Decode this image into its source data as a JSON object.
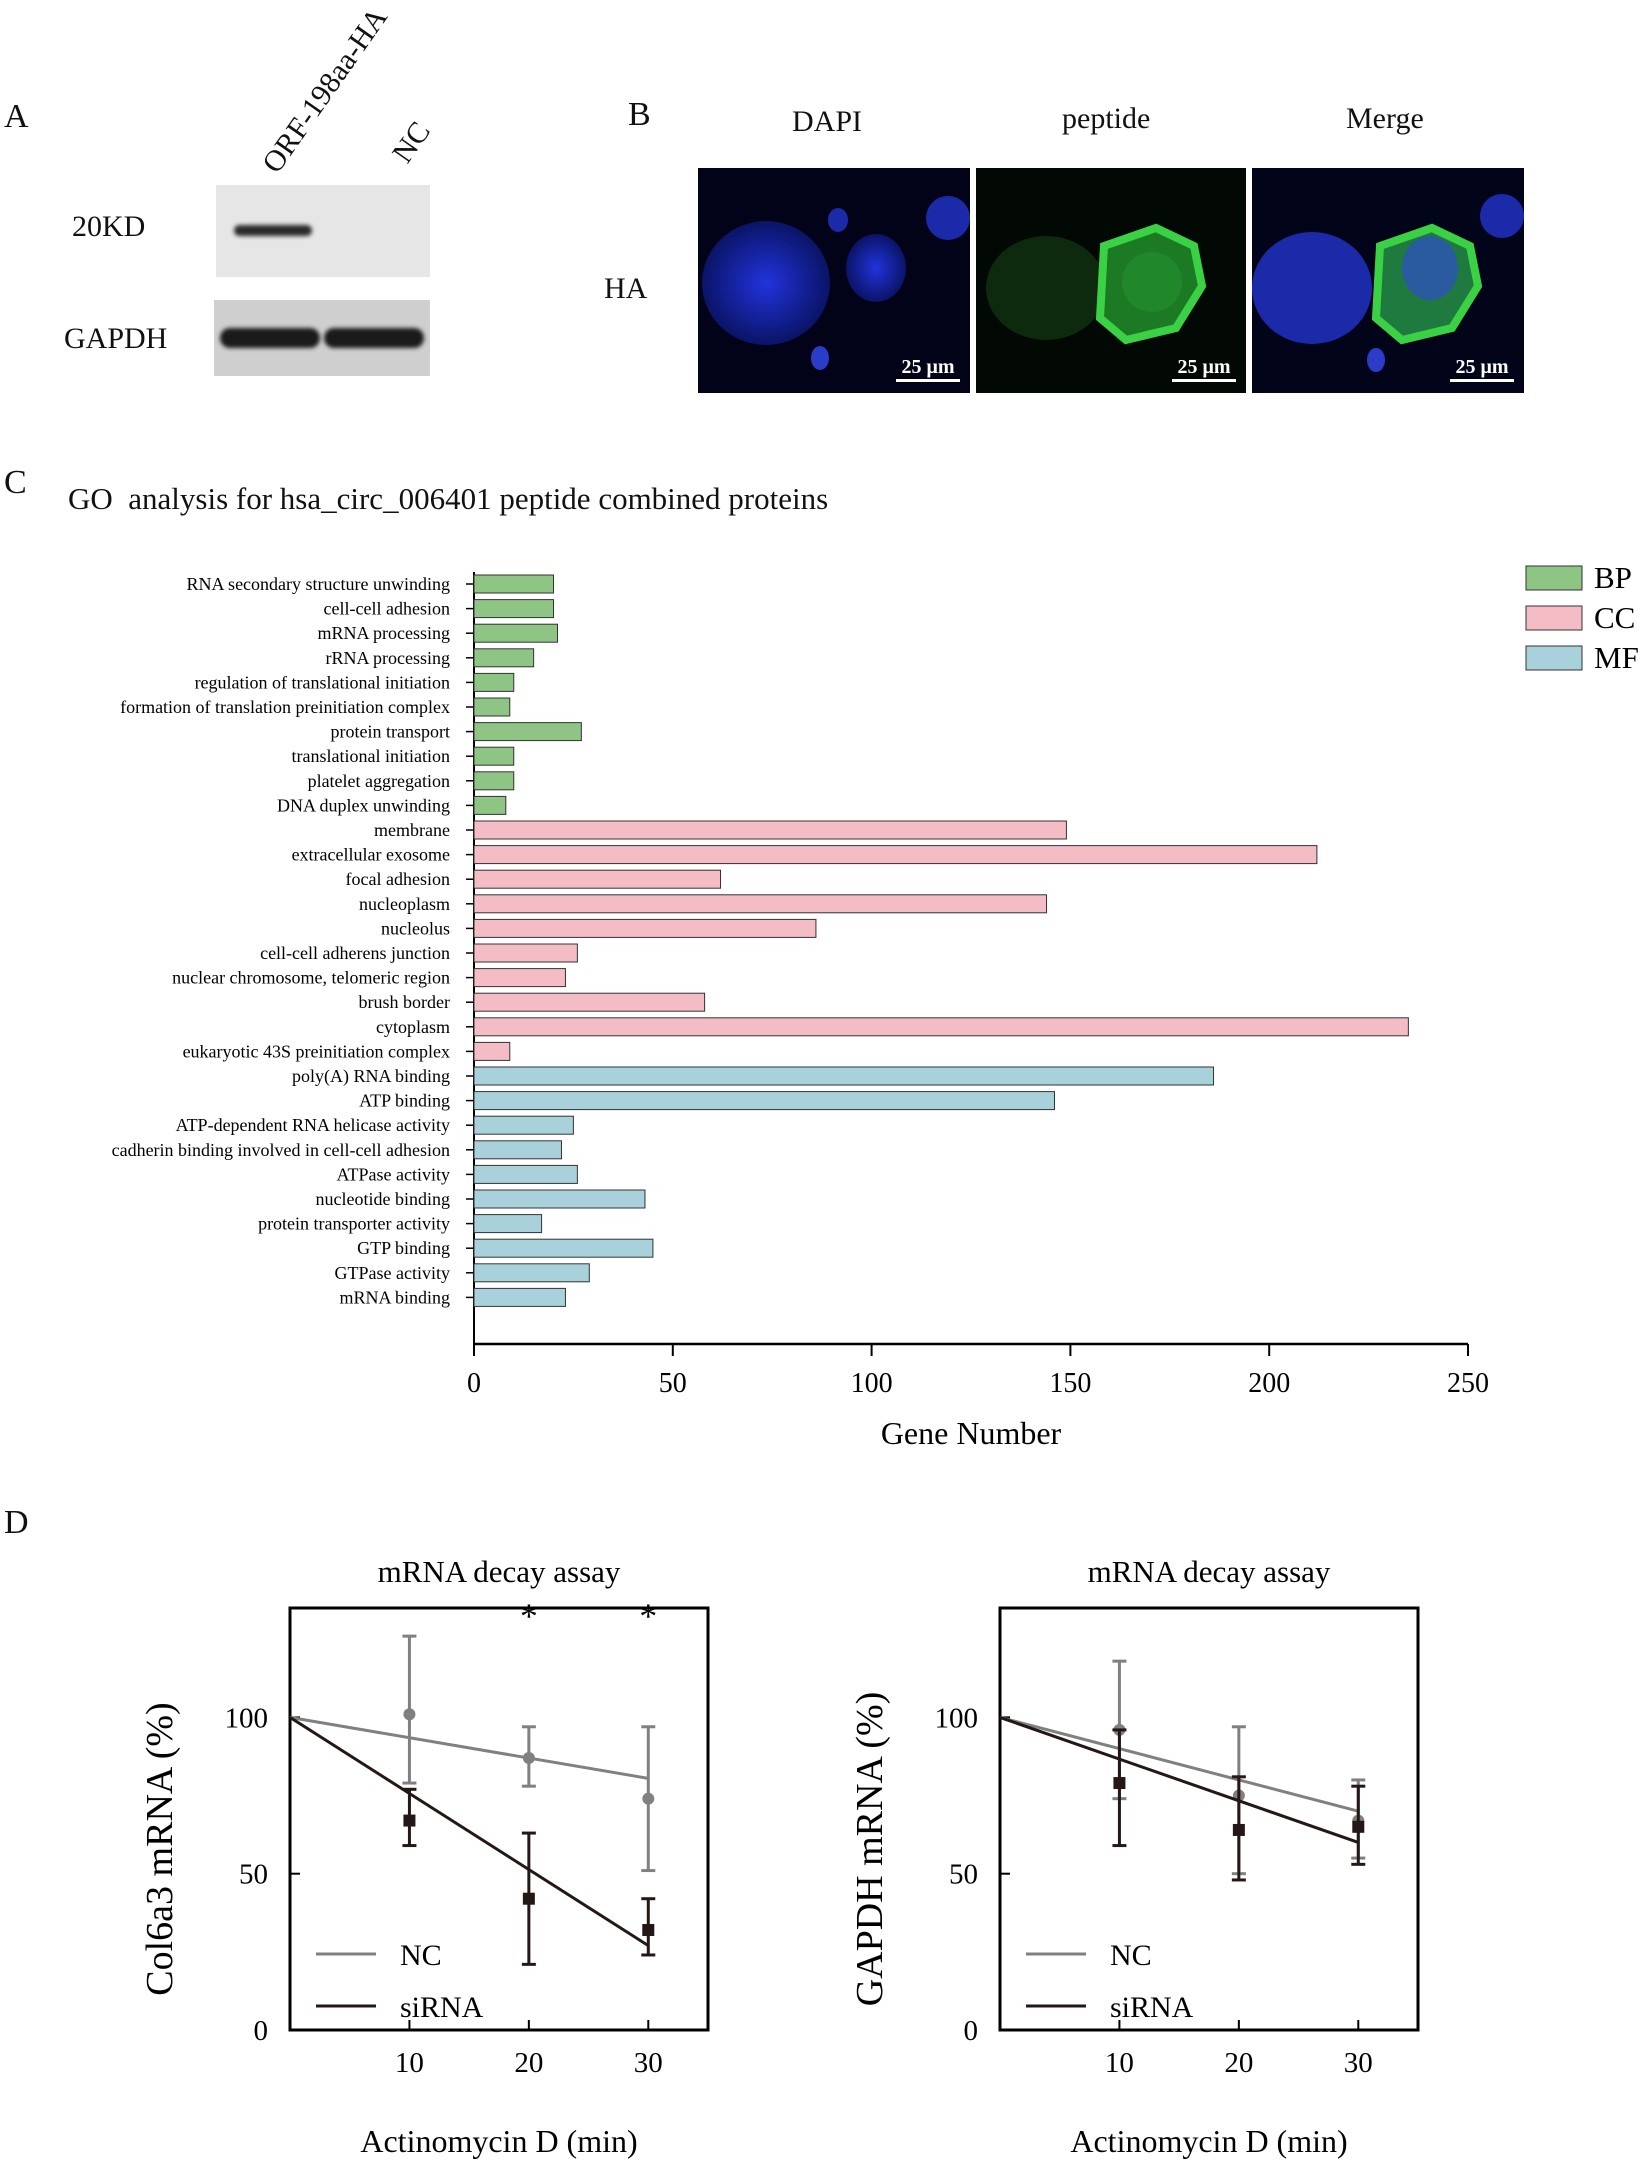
{
  "panelA": {
    "label": "A",
    "lanes": [
      "ORF-198aa-HA",
      "NC"
    ],
    "row1": "20KD",
    "row2": "GAPDH"
  },
  "panelB": {
    "label": "B",
    "columns": [
      "DAPI",
      "peptide",
      "Merge"
    ],
    "row": "HA",
    "scalebar": "25 μm"
  },
  "panelC": {
    "label": "C",
    "title": "GO  analysis for hsa_circ_006401 peptide combined proteins"
  },
  "panelD": {
    "label": "D"
  },
  "colors": {
    "BP": "#8ec584",
    "CC": "#f4bcc4",
    "MF": "#a9d1dc",
    "NC": "#808080",
    "siRNA": "#231815"
  },
  "chart_data": [
    {
      "type": "bar",
      "orientation": "horizontal",
      "title": "GO  analysis for hsa_circ_006401 peptide combined proteins",
      "xlabel": "Gene Number",
      "xlim": [
        0,
        250
      ],
      "xticks": [
        0,
        50,
        100,
        150,
        200,
        250
      ],
      "legend": [
        "BP",
        "CC",
        "MF"
      ],
      "legend_position": "top-right",
      "categories": [
        {
          "label": "RNA secondary structure unwinding",
          "value": 20,
          "group": "BP"
        },
        {
          "label": "cell-cell adhesion",
          "value": 20,
          "group": "BP"
        },
        {
          "label": "mRNA processing",
          "value": 21,
          "group": "BP"
        },
        {
          "label": "rRNA processing",
          "value": 15,
          "group": "BP"
        },
        {
          "label": "regulation of translational initiation",
          "value": 10,
          "group": "BP"
        },
        {
          "label": "formation of translation preinitiation complex",
          "value": 9,
          "group": "BP"
        },
        {
          "label": "protein transport",
          "value": 27,
          "group": "BP"
        },
        {
          "label": "translational initiation",
          "value": 10,
          "group": "BP"
        },
        {
          "label": "platelet aggregation",
          "value": 10,
          "group": "BP"
        },
        {
          "label": "DNA duplex unwinding",
          "value": 8,
          "group": "BP"
        },
        {
          "label": "membrane",
          "value": 149,
          "group": "CC"
        },
        {
          "label": "extracellular exosome",
          "value": 212,
          "group": "CC"
        },
        {
          "label": "focal adhesion",
          "value": 62,
          "group": "CC"
        },
        {
          "label": "nucleoplasm",
          "value": 144,
          "group": "CC"
        },
        {
          "label": "nucleolus",
          "value": 86,
          "group": "CC"
        },
        {
          "label": "cell-cell adherens junction",
          "value": 26,
          "group": "CC"
        },
        {
          "label": "nuclear chromosome, telomeric region",
          "value": 23,
          "group": "CC"
        },
        {
          "label": "brush border",
          "value": 58,
          "group": "CC"
        },
        {
          "label": "cytoplasm",
          "value": 235,
          "group": "CC"
        },
        {
          "label": "eukaryotic 43S preinitiation complex",
          "value": 9,
          "group": "CC"
        },
        {
          "label": "poly(A) RNA binding",
          "value": 186,
          "group": "MF"
        },
        {
          "label": "ATP binding",
          "value": 146,
          "group": "MF"
        },
        {
          "label": "ATP-dependent RNA helicase activity",
          "value": 25,
          "group": "MF"
        },
        {
          "label": "cadherin binding involved in cell-cell adhesion",
          "value": 22,
          "group": "MF"
        },
        {
          "label": "ATPase activity",
          "value": 26,
          "group": "MF"
        },
        {
          "label": "nucleotide binding",
          "value": 43,
          "group": "MF"
        },
        {
          "label": "protein transporter activity",
          "value": 17,
          "group": "MF"
        },
        {
          "label": "GTP binding",
          "value": 45,
          "group": "MF"
        },
        {
          "label": "GTPase activity",
          "value": 29,
          "group": "MF"
        },
        {
          "label": "mRNA binding",
          "value": 23,
          "group": "MF"
        }
      ]
    },
    {
      "type": "line",
      "title": "mRNA decay assay",
      "xlabel": "Actinomycin D (min)",
      "ylabel": "Col6a3 mRNA (%)",
      "xlim": [
        0,
        35
      ],
      "ylim": [
        0,
        135
      ],
      "xticks": [
        10,
        20,
        30
      ],
      "yticks": [
        0,
        50,
        100
      ],
      "legend_position": "bottom-left",
      "x": [
        10,
        20,
        30
      ],
      "series": [
        {
          "name": "NC",
          "values": [
            101,
            87,
            74
          ],
          "err_low": [
            79,
            78,
            51
          ],
          "err_high": [
            126,
            97,
            97
          ],
          "fit": [
            [
              0,
              100
            ],
            [
              30,
              80.5
            ]
          ]
        },
        {
          "name": "siRNA",
          "values": [
            67,
            42,
            32
          ],
          "err_low": [
            59,
            21,
            24
          ],
          "err_high": [
            77,
            63,
            42
          ],
          "fit": [
            [
              0,
              100
            ],
            [
              30,
              27
            ]
          ]
        }
      ],
      "annotations": [
        {
          "x": 20,
          "text": "*"
        },
        {
          "x": 30,
          "text": "*"
        }
      ]
    },
    {
      "type": "line",
      "title": "mRNA decay assay",
      "xlabel": "Actinomycin D (min)",
      "ylabel": "GAPDH mRNA (%)",
      "xlim": [
        0,
        35
      ],
      "ylim": [
        0,
        135
      ],
      "xticks": [
        10,
        20,
        30
      ],
      "yticks": [
        0,
        50,
        100
      ],
      "legend_position": "bottom-left",
      "x": [
        10,
        20,
        30
      ],
      "series": [
        {
          "name": "NC",
          "values": [
            96,
            75,
            67
          ],
          "err_low": [
            74,
            50,
            55
          ],
          "err_high": [
            118,
            97,
            80
          ],
          "fit": [
            [
              0,
              100
            ],
            [
              30,
              70
            ]
          ]
        },
        {
          "name": "siRNA",
          "values": [
            79,
            64,
            65
          ],
          "err_low": [
            59,
            48,
            53
          ],
          "err_high": [
            96,
            81,
            78
          ],
          "fit": [
            [
              0,
              100
            ],
            [
              30,
              60
            ]
          ]
        }
      ],
      "annotations": []
    }
  ]
}
